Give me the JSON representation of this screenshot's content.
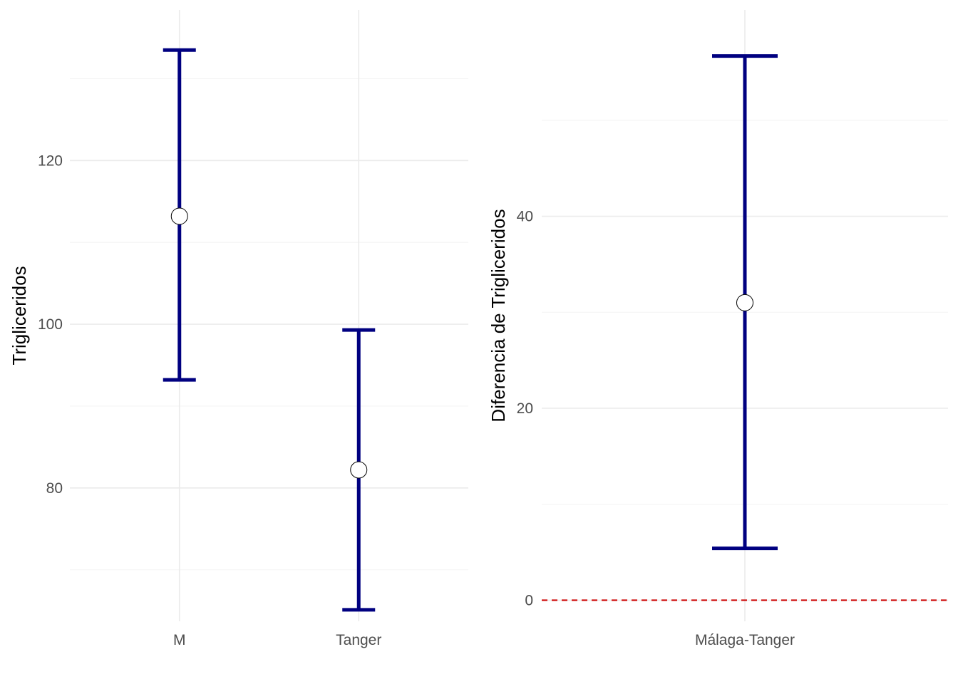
{
  "chart_data": [
    {
      "type": "errorbar",
      "title": "",
      "xlabel": "",
      "ylabel": "Trigliceridos",
      "categories": [
        "M",
        "Tanger"
      ],
      "estimates": [
        113.2,
        82.2
      ],
      "lower": [
        93.2,
        65.1
      ],
      "upper": [
        133.5,
        99.3
      ],
      "ylim": [
        63.7,
        138.4
      ],
      "yticks": [
        80,
        100,
        120
      ],
      "grid": true,
      "colors": {
        "errorbar": "#000080",
        "point_fill": "#ffffff",
        "point_stroke": "#000000"
      }
    },
    {
      "type": "errorbar",
      "title": "",
      "xlabel": "",
      "ylabel": "Diferencia de Trigliceridos",
      "categories": [
        "Málaga-Tanger"
      ],
      "estimates": [
        31.0
      ],
      "lower": [
        5.4
      ],
      "upper": [
        56.7
      ],
      "ylim": [
        -2.2,
        61.5
      ],
      "yticks": [
        0,
        20,
        40
      ],
      "grid": true,
      "reference_line": {
        "y": 0,
        "style": "dashed",
        "color": "#cc0000"
      },
      "colors": {
        "errorbar": "#000080",
        "point_fill": "#ffffff",
        "point_stroke": "#000000"
      }
    }
  ]
}
